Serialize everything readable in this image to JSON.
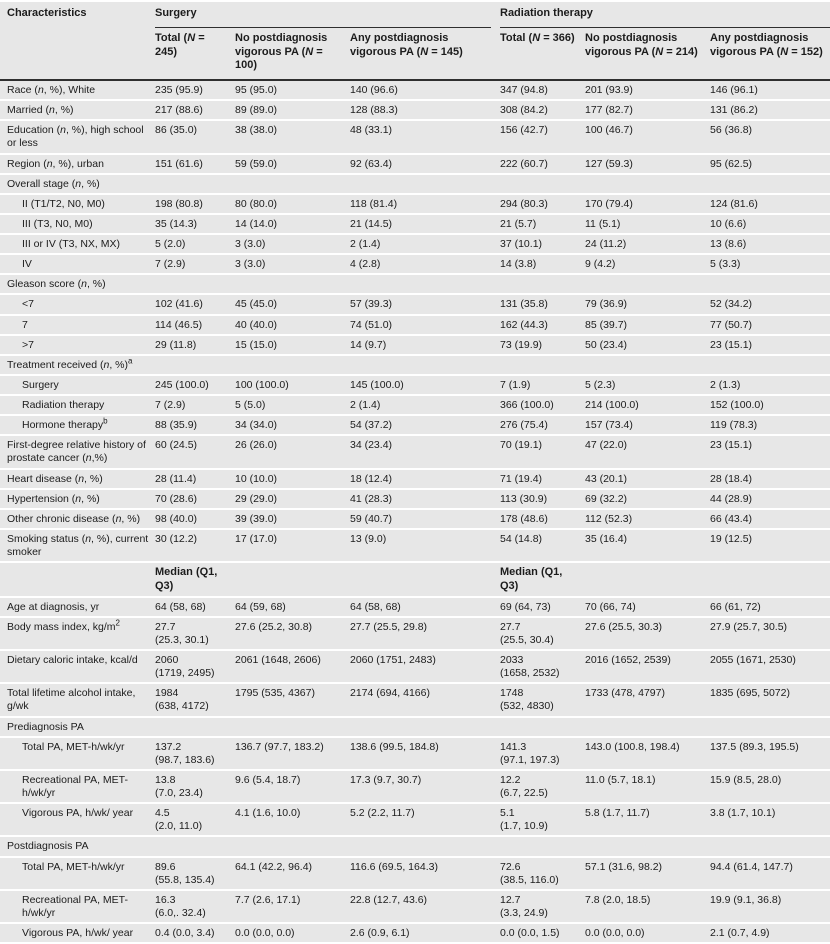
{
  "colors": {
    "row_bg": "#e7e7e7",
    "rule": "#2f2f2f",
    "text": "#1c1c1c"
  },
  "table": {
    "col1_header": "Characteristics",
    "median_label": "Median (Q1, Q3)",
    "groups": [
      {
        "label": "Surgery",
        "cols": [
          "Total (N = 245)",
          "No postdiagnosis vigorous PA (N = 100)",
          "Any postdiagnosis vigorous PA (N = 145)"
        ]
      },
      {
        "label": "Radiation therapy",
        "cols": [
          "Total (N = 366)",
          "No postdiagnosis vigorous PA (N = 214)",
          "Any postdiagnosis vigorous PA (N = 152)"
        ]
      }
    ],
    "rows": [
      {
        "type": "data",
        "label": "Race (n, %), White",
        "values": [
          "235 (95.9)",
          "95 (95.0)",
          "140 (96.6)",
          "347 (94.8)",
          "201 (93.9)",
          "146 (96.1)"
        ]
      },
      {
        "type": "data",
        "label": "Married (n, %)",
        "values": [
          "217 (88.6)",
          "89 (89.0)",
          "128 (88.3)",
          "308 (84.2)",
          "177 (82.7)",
          "131 (86.2)"
        ]
      },
      {
        "type": "data",
        "label": "Education (n, %), high school or less",
        "values": [
          "86 (35.0)",
          "38 (38.0)",
          "48 (33.1)",
          "156 (42.7)",
          "100 (46.7)",
          "56 (36.8)"
        ]
      },
      {
        "type": "data",
        "label": "Region (n, %), urban",
        "values": [
          "151 (61.6)",
          "59 (59.0)",
          "92 (63.4)",
          "222 (60.7)",
          "127 (59.3)",
          "95 (62.5)"
        ]
      },
      {
        "type": "section",
        "label": "Overall stage (n, %)",
        "values": [
          "",
          "",
          "",
          "",
          "",
          ""
        ]
      },
      {
        "type": "data",
        "indent": 1,
        "label": "II (T1/T2, N0, M0)",
        "values": [
          "198 (80.8)",
          "80 (80.0)",
          "118 (81.4)",
          "294 (80.3)",
          "170 (79.4)",
          "124 (81.6)"
        ]
      },
      {
        "type": "data",
        "indent": 1,
        "label": "III (T3, N0, M0)",
        "values": [
          "35 (14.3)",
          "14 (14.0)",
          "21 (14.5)",
          "21 (5.7)",
          "11 (5.1)",
          "10 (6.6)"
        ]
      },
      {
        "type": "data",
        "indent": 1,
        "label": "III or IV (T3, NX, MX)",
        "values": [
          "5 (2.0)",
          "3 (3.0)",
          "2 (1.4)",
          "37 (10.1)",
          "24 (11.2)",
          "13 (8.6)"
        ]
      },
      {
        "type": "data",
        "indent": 1,
        "label": "IV",
        "values": [
          "7 (2.9)",
          "3 (3.0)",
          "4 (2.8)",
          "14 (3.8)",
          "9 (4.2)",
          "5 (3.3)"
        ]
      },
      {
        "type": "section",
        "label": "Gleason score (n, %)",
        "values": [
          "",
          "",
          "",
          "",
          "",
          ""
        ]
      },
      {
        "type": "data",
        "indent": 1,
        "label": "<7",
        "values": [
          "102 (41.6)",
          "45 (45.0)",
          "57 (39.3)",
          "131 (35.8)",
          "79 (36.9)",
          "52 (34.2)"
        ]
      },
      {
        "type": "data",
        "indent": 1,
        "label": "7",
        "values": [
          "114 (46.5)",
          "40 (40.0)",
          "74 (51.0)",
          "162 (44.3)",
          "85 (39.7)",
          "77 (50.7)"
        ]
      },
      {
        "type": "data",
        "indent": 1,
        "label": ">7",
        "values": [
          "29 (11.8)",
          "15 (15.0)",
          "14 (9.7)",
          "73 (19.9)",
          "50 (23.4)",
          "23 (15.1)"
        ]
      },
      {
        "type": "section",
        "label": "Treatment received (n, %)^a",
        "values": [
          "",
          "",
          "",
          "",
          "",
          ""
        ]
      },
      {
        "type": "data",
        "indent": 1,
        "label": "Surgery",
        "values": [
          "245 (100.0)",
          "100 (100.0)",
          "145 (100.0)",
          "7 (1.9)",
          "5 (2.3)",
          "2 (1.3)"
        ]
      },
      {
        "type": "data",
        "indent": 1,
        "label": "Radiation therapy",
        "values": [
          "7 (2.9)",
          "5 (5.0)",
          "2 (1.4)",
          "366 (100.0)",
          "214 (100.0)",
          "152 (100.0)"
        ]
      },
      {
        "type": "data",
        "indent": 1,
        "label": "Hormone therapy^b",
        "values": [
          "88 (35.9)",
          "34 (34.0)",
          "54 (37.2)",
          "276 (75.4)",
          "157 (73.4)",
          "119 (78.3)"
        ]
      },
      {
        "type": "data",
        "label": "First-degree relative history of prostate cancer (n,%)",
        "values": [
          "60 (24.5)",
          "26 (26.0)",
          "34 (23.4)",
          "70 (19.1)",
          "47 (22.0)",
          "23 (15.1)"
        ]
      },
      {
        "type": "data",
        "label": "Heart disease (n, %)",
        "values": [
          "28 (11.4)",
          "10 (10.0)",
          "18 (12.4)",
          "71 (19.4)",
          "43 (20.1)",
          "28 (18.4)"
        ]
      },
      {
        "type": "data",
        "label": "Hypertension (n, %)",
        "values": [
          "70 (28.6)",
          "29 (29.0)",
          "41 (28.3)",
          "113 (30.9)",
          "69 (32.2)",
          "44 (28.9)"
        ]
      },
      {
        "type": "data",
        "label": "Other chronic disease (n, %)",
        "values": [
          "98 (40.0)",
          "39 (39.0)",
          "59 (40.7)",
          "178 (48.6)",
          "112 (52.3)",
          "66 (43.4)"
        ]
      },
      {
        "type": "data",
        "label": "Smoking status (n, %), current smoker",
        "values": [
          "30 (12.2)",
          "17 (17.0)",
          "13 (9.0)",
          "54 (14.8)",
          "35 (16.4)",
          "19 (12.5)"
        ]
      },
      {
        "type": "median",
        "label": "",
        "values": [
          "Median (Q1, Q3)",
          "",
          "",
          "Median (Q1, Q3)",
          "",
          ""
        ]
      },
      {
        "type": "data",
        "label": "Age at diagnosis, yr",
        "values": [
          "64 (58, 68)",
          "64 (59, 68)",
          "64 (58, 68)",
          "69 (64, 73)",
          "70 (66, 74)",
          "66 (61, 72)"
        ]
      },
      {
        "type": "data",
        "label": "Body mass index, kg/m^2",
        "values": [
          "27.7\n(25.3, 30.1)",
          "27.6 (25.2, 30.8)",
          "27.7 (25.5, 29.8)",
          "27.7\n(25.5, 30.4)",
          "27.6 (25.5, 30.3)",
          "27.9 (25.7, 30.5)"
        ]
      },
      {
        "type": "data",
        "label": "Dietary caloric intake, kcal/d",
        "values": [
          "2060\n(1719, 2495)",
          "2061 (1648, 2606)",
          "2060 (1751, 2483)",
          "2033\n(1658, 2532)",
          "2016 (1652, 2539)",
          "2055 (1671, 2530)"
        ]
      },
      {
        "type": "data",
        "label": "Total lifetime alcohol intake, g/wk",
        "values": [
          "1984\n(638, 4172)",
          "1795 (535, 4367)",
          "2174 (694, 4166)",
          "1748\n(532, 4830)",
          "1733 (478, 4797)",
          "1835 (695, 5072)"
        ]
      },
      {
        "type": "section",
        "label": "Prediagnosis PA",
        "values": [
          "",
          "",
          "",
          "",
          "",
          ""
        ]
      },
      {
        "type": "data",
        "indent": 1,
        "label": "Total PA, MET-h/wk/yr",
        "values": [
          "137.2\n(98.7, 183.6)",
          "136.7 (97.7, 183.2)",
          "138.6 (99.5, 184.8)",
          "141.3\n(97.1, 197.3)",
          "143.0 (100.8, 198.4)",
          "137.5 (89.3, 195.5)"
        ]
      },
      {
        "type": "data",
        "indent": 1,
        "label": "Recreational PA, MET-h/wk/yr",
        "values": [
          "13.8\n(7.0, 23.4)",
          "9.6 (5.4, 18.7)",
          "17.3 (9.7, 30.7)",
          "12.2\n(6.7, 22.5)",
          "11.0 (5.7, 18.1)",
          "15.9 (8.5, 28.0)"
        ]
      },
      {
        "type": "data",
        "indent": 1,
        "label": "Vigorous PA, h/wk/ year",
        "values": [
          "4.5\n(2.0, 11.0)",
          "4.1 (1.6, 10.0)",
          "5.2 (2.2, 11.7)",
          "5.1\n(1.7, 10.9)",
          "5.8 (1.7, 11.7)",
          "3.8 (1.7, 10.1)"
        ]
      },
      {
        "type": "section",
        "label": "Postdiagnosis PA",
        "values": [
          "",
          "",
          "",
          "",
          "",
          ""
        ]
      },
      {
        "type": "data",
        "indent": 1,
        "label": "Total PA, MET-h/wk/yr",
        "values": [
          "89.6\n(55.8, 135.4)",
          "64.1 (42.2, 96.4)",
          "116.6 (69.5, 164.3)",
          "72.6\n(38.5, 116.0)",
          "57.1 (31.6, 98.2)",
          "94.4 (61.4, 147.7)"
        ]
      },
      {
        "type": "data",
        "indent": 1,
        "label": "Recreational PA, MET-h/wk/yr",
        "values": [
          "16.3\n(6.0,. 32.4)",
          "7.7 (2.6, 17.1)",
          "22.8 (12.7, 43.6)",
          "12.7\n(3.3, 24.9)",
          "7.8 (2.0, 18.5)",
          "19.9 (9.1, 36.8)"
        ]
      },
      {
        "type": "data",
        "indent": 1,
        "label": "Vigorous PA, h/wk/ year",
        "values": [
          "0.4 (0.0, 3.4)",
          "0.0 (0.0, 0.0)",
          "2.6 (0.9, 6.1)",
          "0.0 (0.0, 1.5)",
          "0.0 (0.0, 0.0)",
          "2.1 (0.7, 4.9)"
        ]
      }
    ]
  }
}
